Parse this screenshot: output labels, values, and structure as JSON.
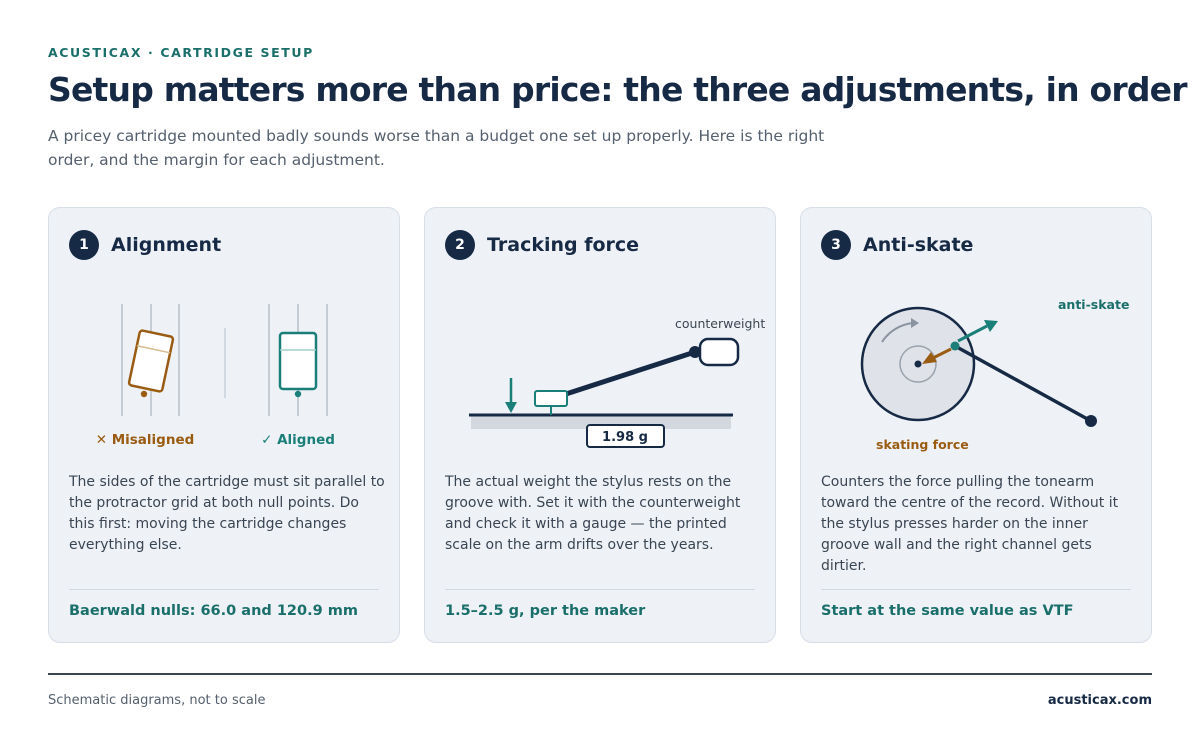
{
  "header": {
    "eyebrow": "ACUSTICAX · CARTRIDGE SETUP",
    "title": "Setup matters more than price: the three adjustments, in order",
    "subtitle": "A pricey cartridge mounted badly sounds worse than a budget one set up properly. Here is the right order, and the margin for each adjustment."
  },
  "colors": {
    "navy": "#172a45",
    "teal": "#1a7f78",
    "brown": "#9a5b12",
    "card_bg": "#eef2f6"
  },
  "cards": [
    {
      "number": "1",
      "title": "Alignment",
      "figure": {
        "misaligned_label": "✕ Misaligned",
        "aligned_label": "✓ Aligned"
      },
      "body": "The sides of the cartridge must sit parallel to the protractor grid at both null points. Do this first: moving the cartridge changes everything else.",
      "footer": "Baerwald nulls: 66.0 and 120.9 mm"
    },
    {
      "number": "2",
      "title": "Tracking force",
      "figure": {
        "counterweight_label": "counterweight",
        "gauge_reading": "1.98 g"
      },
      "body": "The actual weight the stylus rests on the groove with. Set it with the counterweight and check it with a gauge — the printed scale on the arm drifts over the years.",
      "footer": "1.5–2.5 g, per the maker"
    },
    {
      "number": "3",
      "title": "Anti-skate",
      "figure": {
        "anti_skate_label": "anti-skate",
        "skating_force_label": "skating force"
      },
      "body": "Counters the force pulling the tonearm toward the centre of the record. Without it the stylus presses harder on the inner groove wall and the right channel gets dirtier.",
      "footer": "Start at the same value as VTF"
    }
  ],
  "footer": {
    "note": "Schematic diagrams, not to scale",
    "site": "acusticax.com"
  }
}
